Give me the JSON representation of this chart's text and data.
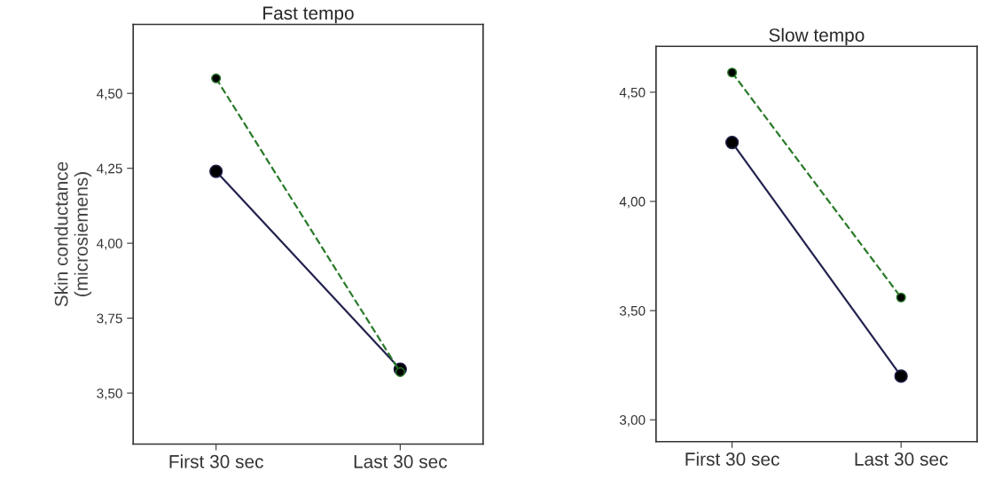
{
  "chart_data": [
    {
      "type": "line",
      "title": "Fast tempo",
      "ylabel": "Skin conductance\n(microsiemens)",
      "categories": [
        "First 30 sec",
        "Last 30 sec"
      ],
      "ylim": [
        3.33,
        4.73
      ],
      "yticks": [
        {
          "value": 3.5,
          "label": "3,50"
        },
        {
          "value": 3.75,
          "label": "3,75"
        },
        {
          "value": 4.0,
          "label": "4,00"
        },
        {
          "value": 4.25,
          "label": "4,25"
        },
        {
          "value": 4.5,
          "label": "4,50"
        }
      ],
      "marker": "circle",
      "grid": false,
      "legend": false,
      "series": [
        {
          "color": "#23234f",
          "values": [
            4.24,
            3.58
          ],
          "line_style": "solid"
        },
        {
          "color": "#2a7a2a",
          "values": [
            4.55,
            3.57
          ],
          "line_style": "dashed"
        }
      ]
    },
    {
      "type": "line",
      "title": "Slow tempo",
      "categories": [
        "First 30 sec",
        "Last 30 sec"
      ],
      "ylim": [
        2.9,
        4.71
      ],
      "yticks": [
        {
          "value": 3.0,
          "label": "3,00"
        },
        {
          "value": 3.5,
          "label": "3,50"
        },
        {
          "value": 4.0,
          "label": "4,00"
        },
        {
          "value": 4.5,
          "label": "4,50"
        }
      ],
      "marker": "circle",
      "grid": false,
      "legend": false,
      "series": [
        {
          "color": "#23234f",
          "values": [
            4.27,
            3.2
          ],
          "line_style": "solid"
        },
        {
          "color": "#2a7a2a",
          "values": [
            4.59,
            3.56
          ],
          "line_style": "dashed"
        }
      ]
    }
  ]
}
